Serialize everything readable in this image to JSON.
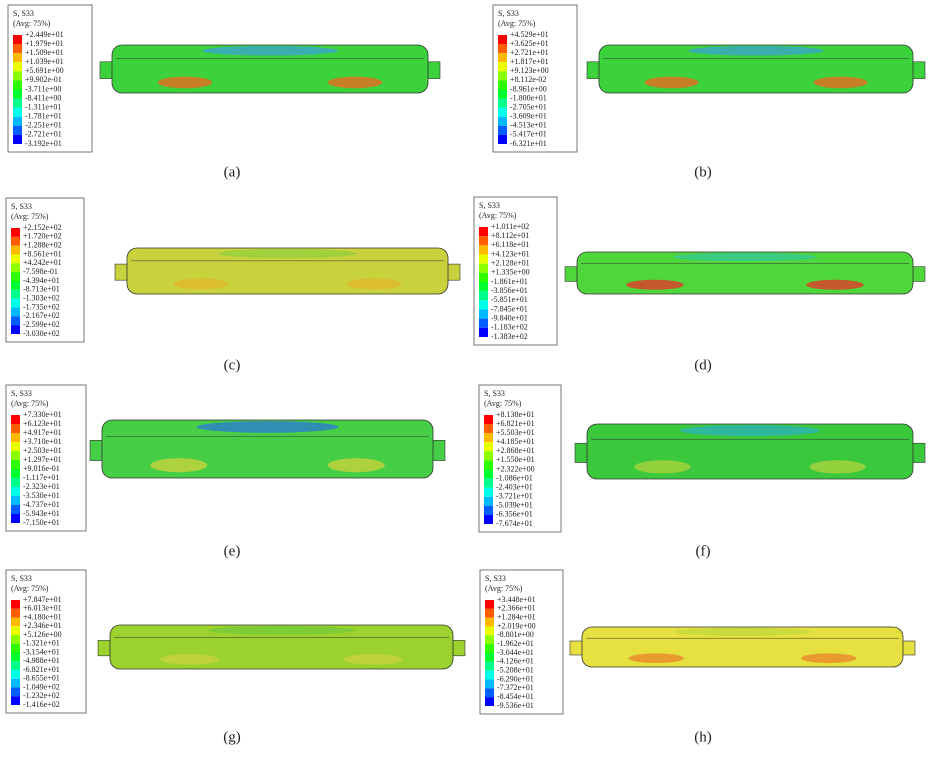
{
  "panels": [
    {
      "caption": "(a)",
      "legend_title": "S, S33",
      "legend_subtitle": "(Avg: 75%)",
      "legend_values": [
        "+2.449e+01",
        "+1.979e+01",
        "+1.509e+01",
        "+1.039e+01",
        "+5.691e+00",
        "+9.902e-01",
        "-3.711e+00",
        "-8.411e+00",
        "-1.311e+01",
        "-1.781e+01",
        "-2.251e+01",
        "-2.721e+01",
        "-3.192e+01"
      ]
    },
    {
      "caption": "(b)",
      "legend_title": "S, S33",
      "legend_subtitle": "(Avg: 75%)",
      "legend_values": [
        "+4.529e+01",
        "+3.625e+01",
        "+2.721e+01",
        "+1.817e+01",
        "+9.123e+00",
        "+8.112e-02",
        "-8.961e+00",
        "-1.800e+01",
        "-2.705e+01",
        "-3.609e+01",
        "-4.513e+01",
        "-5.417e+01",
        "-6.321e+01"
      ]
    },
    {
      "caption": "(c)",
      "legend_title": "S, S33",
      "legend_subtitle": "(Avg: 75%)",
      "legend_values": [
        "+2.152e+02",
        "+1.720e+02",
        "+1.288e+02",
        "+8.561e+01",
        "+4.242e+01",
        "-7.598e-01",
        "-4.394e+01",
        "-8.713e+01",
        "-1.303e+02",
        "-1.735e+02",
        "-2.167e+02",
        "-2.599e+02",
        "-3.030e+02"
      ]
    },
    {
      "caption": "(d)",
      "legend_title": "S, S33",
      "legend_subtitle": "(Avg: 75%)",
      "legend_values": [
        "+1.011e+02",
        "+8.112e+01",
        "+6.118e+01",
        "+4.123e+01",
        "+2.128e+01",
        "+1.335e+00",
        "-1.861e+01",
        "-3.856e+01",
        "-5.851e+01",
        "-7.845e+01",
        "-9.840e+01",
        "-1.183e+02",
        "-1.383e+02"
      ]
    },
    {
      "caption": "(e)",
      "legend_title": "S, S33",
      "legend_subtitle": "(Avg: 75%)",
      "legend_values": [
        "+7.330e+01",
        "+6.123e+01",
        "+4.917e+01",
        "+3.710e+01",
        "+2.503e+01",
        "+1.297e+01",
        "+9.016e-01",
        "-1.117e+01",
        "-2.323e+01",
        "-3.530e+01",
        "-4.737e+01",
        "-5.943e+01",
        "-7.150e+01"
      ]
    },
    {
      "caption": "(f)",
      "legend_title": "S, S33",
      "legend_subtitle": "(Avg: 75%)",
      "legend_values": [
        "+8.138e+01",
        "+6.821e+01",
        "+5.503e+01",
        "+4.185e+01",
        "+2.868e+01",
        "+1.550e+01",
        "+2.322e+00",
        "-1.086e+01",
        "-2.403e+01",
        "-3.721e+01",
        "-5.039e+01",
        "-6.356e+01",
        "-7.674e+01"
      ]
    },
    {
      "caption": "(g)",
      "legend_title": "S, S33",
      "legend_subtitle": "(Avg: 75%)",
      "legend_values": [
        "+7.847e+01",
        "+6.013e+01",
        "+4.180e+01",
        "+2.346e+01",
        "+5.126e+00",
        "-1.321e+01",
        "-3.154e+01",
        "-4.988e+01",
        "-6.821e+01",
        "-8.655e+01",
        "-1.049e+02",
        "-1.232e+02",
        "-1.416e+02"
      ]
    },
    {
      "caption": "(h)",
      "legend_title": "S, S33",
      "legend_subtitle": "(Avg: 75%)",
      "legend_values": [
        "+3.448e+01",
        "+2.366e+01",
        "+1.284e+01",
        "+2.019e+00",
        "-8.801e+00",
        "-1.962e+01",
        "-3.044e+01",
        "-4.126e+01",
        "-5.208e+01",
        "-6.290e+01",
        "-7.372e+01",
        "-8.454e+01",
        "-9.536e+01"
      ]
    }
  ]
}
